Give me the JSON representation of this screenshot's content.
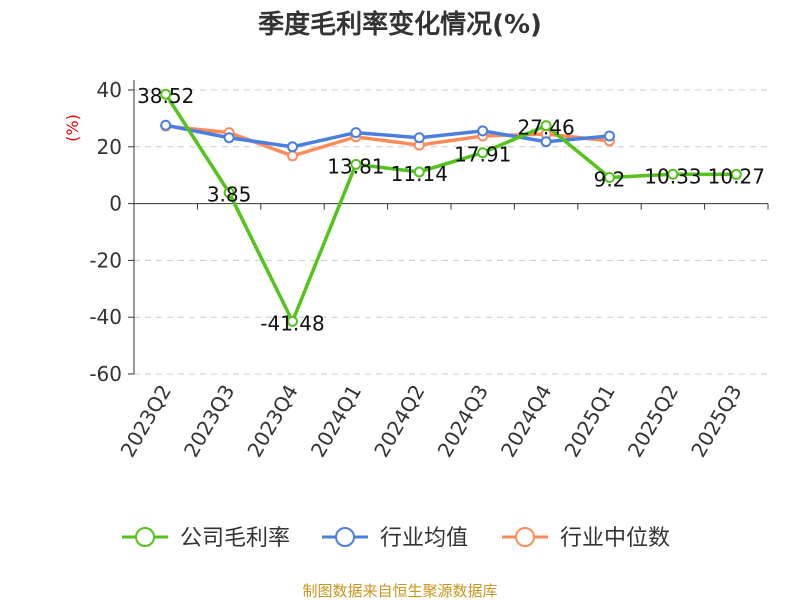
{
  "chart_data": {
    "type": "line",
    "title": "季度毛利率变化情况(%)",
    "ylabel": "(%)",
    "ylim": [
      -60,
      40
    ],
    "yticks": [
      40,
      20,
      0,
      -20,
      -40,
      -60
    ],
    "grid": true,
    "legend_position": "bottom",
    "categories": [
      "2023Q2",
      "2023Q3",
      "2023Q4",
      "2024Q1",
      "2024Q2",
      "2024Q3",
      "2024Q4",
      "2025Q1",
      "2025Q2",
      "2025Q3"
    ],
    "series": [
      {
        "name": "公司毛利率",
        "color": "#52c41a",
        "values": [
          38.52,
          3.85,
          -41.48,
          13.81,
          11.14,
          17.91,
          27.46,
          9.2,
          10.33,
          10.27
        ],
        "labels": [
          "38.52",
          "3.85",
          "-41.48",
          "13.81",
          "11.14",
          "17.91",
          "27.46",
          "9.2",
          "10.33",
          "10.27"
        ]
      },
      {
        "name": "行业均值",
        "color": "#4a7fe0",
        "values": [
          27.6,
          23.2,
          20.0,
          25.0,
          23.2,
          25.6,
          21.8,
          23.8,
          null,
          null
        ]
      },
      {
        "name": "行业中位数",
        "color": "#fb8c5a",
        "values": [
          27.3,
          25.0,
          16.8,
          23.5,
          20.6,
          23.8,
          24.5,
          22.1,
          null,
          null
        ]
      }
    ]
  },
  "source": "制图数据来自恒生聚源数据库"
}
